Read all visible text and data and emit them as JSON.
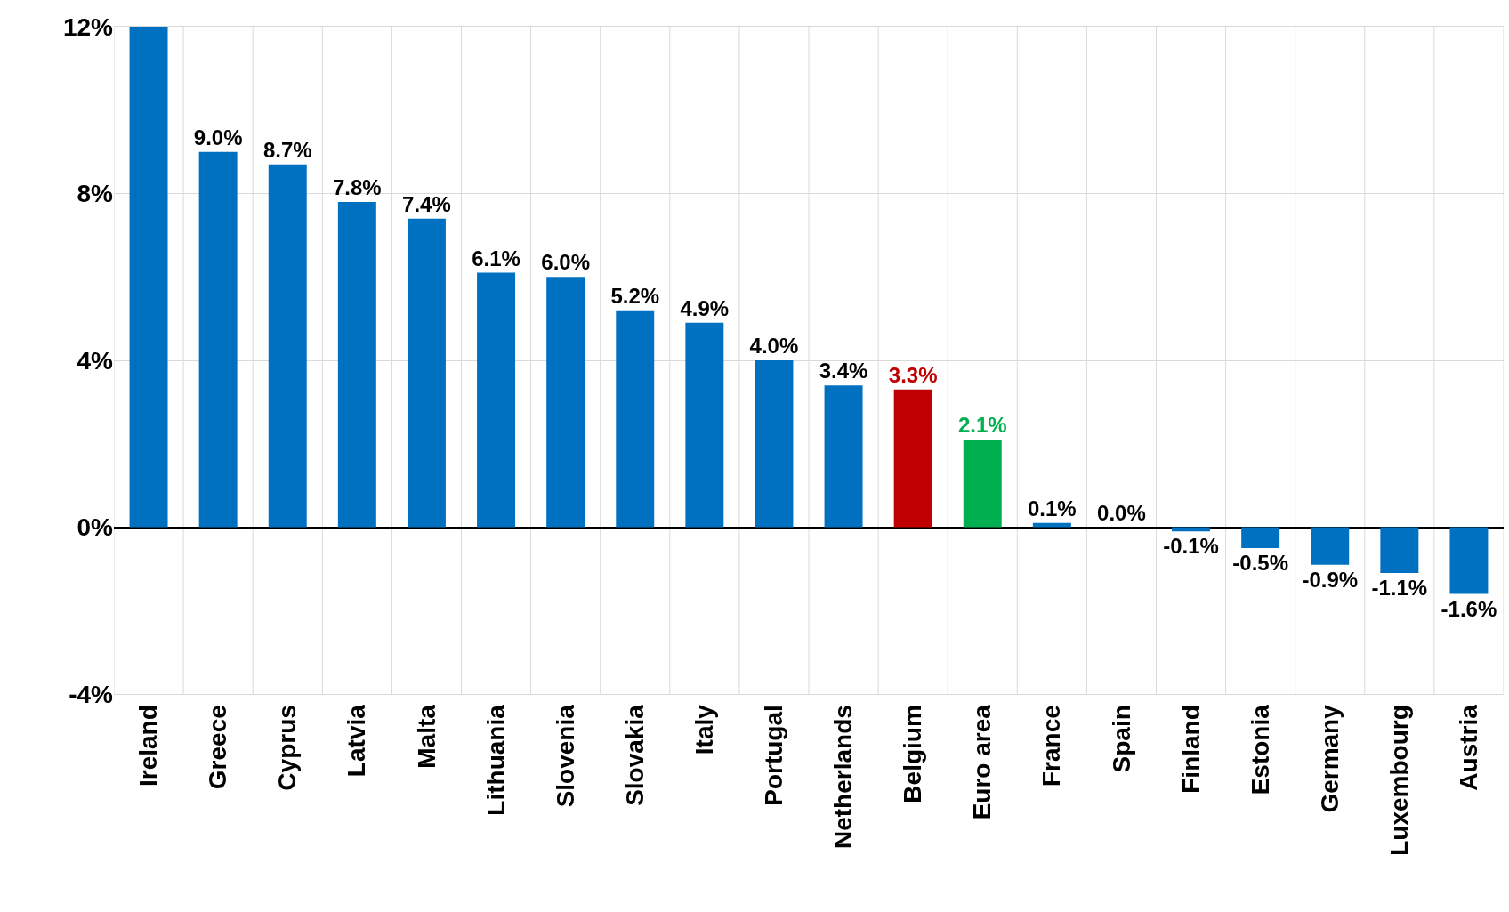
{
  "chart_data": {
    "type": "bar",
    "categories": [
      "Ireland",
      "Greece",
      "Cyprus",
      "Latvia",
      "Malta",
      "Lithuania",
      "Slovenia",
      "Slovakia",
      "Italy",
      "Portugal",
      "Netherlands",
      "Belgium",
      "Euro area",
      "France",
      "Spain",
      "Finland",
      "Estonia",
      "Germany",
      "Luxembourg",
      "Austria"
    ],
    "values": [
      12,
      9.0,
      8.7,
      7.8,
      7.4,
      6.1,
      6.0,
      5.2,
      4.9,
      4.0,
      3.4,
      3.3,
      2.1,
      0.1,
      0.0,
      -0.1,
      -0.5,
      -0.9,
      -1.1,
      -1.6
    ],
    "value_labels": [
      null,
      "9.0%",
      "8.7%",
      "7.8%",
      "7.4%",
      "6.1%",
      "6.0%",
      "5.2%",
      "4.9%",
      "4.0%",
      "3.4%",
      "3.3%",
      "2.1%",
      "0.1%",
      "0.0%",
      "-0.1%",
      "-0.5%",
      "-0.9%",
      "-1.1%",
      "-1.6%"
    ],
    "color": "#0070c0",
    "colors": [
      "#0070c0",
      "#0070c0",
      "#0070c0",
      "#0070c0",
      "#0070c0",
      "#0070c0",
      "#0070c0",
      "#0070c0",
      "#0070c0",
      "#0070c0",
      "#0070c0",
      "#c00000",
      "#00b050",
      "#0070c0",
      "#0070c0",
      "#0070c0",
      "#0070c0",
      "#0070c0",
      "#0070c0",
      "#0070c0"
    ],
    "ylim": [
      -4,
      12
    ],
    "yticks": [
      {
        "value": -4,
        "label": "-4%"
      },
      {
        "value": 0,
        "label": "0%"
      },
      {
        "value": 4,
        "label": "4%"
      },
      {
        "value": 8,
        "label": "8%"
      },
      {
        "value": 12,
        "label": "12%"
      }
    ],
    "grid": true
  }
}
